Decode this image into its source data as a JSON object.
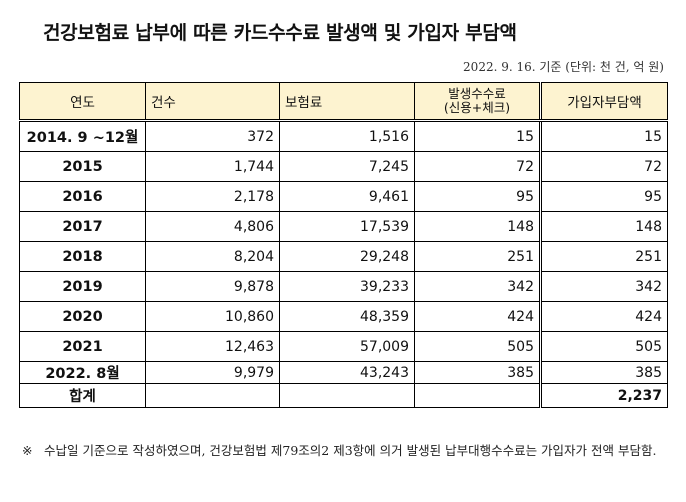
{
  "title": "건강보험료 납부에 따른 카드수수료 발생액 및 가입자 부담액",
  "meta": "2022. 9. 16. 기준 (단위: 천 건, 억 원)",
  "headers": {
    "year": "연도",
    "count": "건수",
    "premium": "보험료",
    "fee": "발생수수료",
    "fee_sub": "(신용+체크)",
    "burden": "가입자부담액"
  },
  "rows": [
    {
      "year": "2014. 9 ~12월",
      "count": "372",
      "premium": "1,516",
      "fee": "15",
      "burden": "15"
    },
    {
      "year": "2015",
      "count": "1,744",
      "premium": "7,245",
      "fee": "72",
      "burden": "72"
    },
    {
      "year": "2016",
      "count": "2,178",
      "premium": "9,461",
      "fee": "95",
      "burden": "95"
    },
    {
      "year": "2017",
      "count": "4,806",
      "premium": "17,539",
      "fee": "148",
      "burden": "148"
    },
    {
      "year": "2018",
      "count": "8,204",
      "premium": "29,248",
      "fee": "251",
      "burden": "251"
    },
    {
      "year": "2019",
      "count": "9,878",
      "premium": "39,233",
      "fee": "342",
      "burden": "342"
    },
    {
      "year": "2020",
      "count": "10,860",
      "premium": "48,359",
      "fee": "424",
      "burden": "424"
    },
    {
      "year": "2021",
      "count": "12,463",
      "premium": "57,009",
      "fee": "505",
      "burden": "505"
    },
    {
      "year": "2022. 8월",
      "count": "9,979",
      "premium": "43,243",
      "fee": "385",
      "burden": "385"
    }
  ],
  "total": {
    "label": "합계",
    "burden": "2,237"
  },
  "note": {
    "mark": "※",
    "text": "수납일 기준으로 작성하였으며, 건강보험법 제79조의2 제3항에 의거 발생된 납부대행수수료는 가입자가 전액 부담함."
  },
  "colors": {
    "header_bg": "#fdf3d0"
  }
}
